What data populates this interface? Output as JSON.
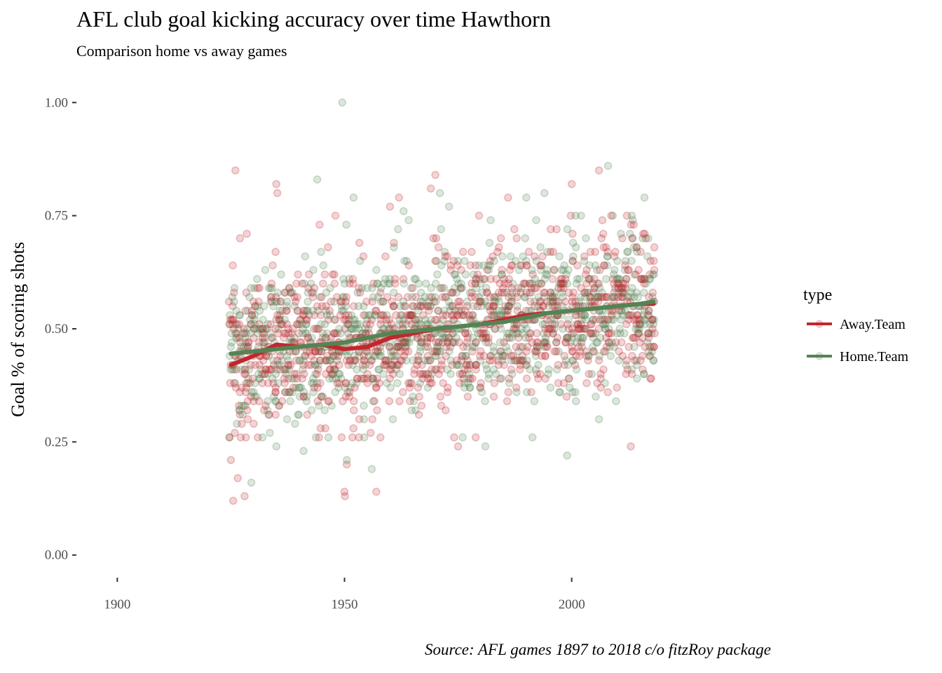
{
  "chart_data": {
    "type": "scatter",
    "title": "AFL club goal kicking accuracy over time Hawthorn",
    "subtitle": "Comparison home vs away games",
    "xlabel": "",
    "ylabel": "Goal % of scoring shots",
    "caption": "Source: AFL games 1897 to 2018 c/o fitzRoy package",
    "xlim": [
      1891,
      2042
    ],
    "ylim": [
      -0.05,
      1.05
    ],
    "x_ticks": [
      1900,
      1950,
      2000
    ],
    "x_tick_labels": [
      "1900",
      "1950",
      "2000"
    ],
    "y_ticks": [
      0.0,
      0.25,
      0.5,
      0.75,
      1.0
    ],
    "y_tick_labels": [
      "0.00",
      "0.25",
      "0.50",
      "0.75",
      "1.00"
    ],
    "grid": false,
    "legend": {
      "title": "type",
      "position": "right",
      "entries": [
        {
          "label": "Away.Team",
          "color": "#c0282e"
        },
        {
          "label": "Home.Team",
          "color": "#548453"
        }
      ]
    },
    "point_alpha": 0.2,
    "series": [
      {
        "name": "Away.Team",
        "color": "#c0282e",
        "x_range": [
          1925,
          2018
        ],
        "games_per_year": 11,
        "points": [
          [
            1925,
            0.21
          ],
          [
            1925.5,
            0.12
          ],
          [
            1926,
            0.85
          ],
          [
            1926.5,
            0.17
          ],
          [
            1927,
            0.7
          ],
          [
            1928,
            0.13
          ],
          [
            1928.5,
            0.71
          ],
          [
            1935,
            0.82
          ],
          [
            1935.2,
            0.8
          ],
          [
            1944.5,
            0.73
          ],
          [
            1948,
            0.75
          ],
          [
            1950,
            0.14
          ],
          [
            1950.1,
            0.13
          ],
          [
            1950.5,
            0.2
          ],
          [
            1957,
            0.14
          ],
          [
            1960,
            0.77
          ],
          [
            1962,
            0.79
          ],
          [
            1969,
            0.81
          ],
          [
            1970,
            0.84
          ],
          [
            1975,
            0.24
          ],
          [
            1986,
            0.79
          ],
          [
            2000,
            0.82
          ],
          [
            2006,
            0.85
          ],
          [
            2013,
            0.24
          ],
          [
            2017.5,
            0.39
          ]
        ],
        "trend": [
          [
            1925,
            0.42
          ],
          [
            1930,
            0.44
          ],
          [
            1935,
            0.465
          ],
          [
            1940,
            0.46
          ],
          [
            1945,
            0.465
          ],
          [
            1950,
            0.455
          ],
          [
            1955,
            0.46
          ],
          [
            1960,
            0.48
          ],
          [
            1965,
            0.49
          ],
          [
            1970,
            0.5
          ],
          [
            1975,
            0.505
          ],
          [
            1980,
            0.51
          ],
          [
            1985,
            0.52
          ],
          [
            1990,
            0.53
          ],
          [
            1995,
            0.535
          ],
          [
            2000,
            0.54
          ],
          [
            2005,
            0.545
          ],
          [
            2010,
            0.55
          ],
          [
            2015,
            0.555
          ],
          [
            2018,
            0.555
          ]
        ]
      },
      {
        "name": "Home.Team",
        "color": "#548453",
        "x_range": [
          1925,
          2018
        ],
        "games_per_year": 11,
        "points": [
          [
            1929.5,
            0.16
          ],
          [
            1935,
            0.24
          ],
          [
            1941,
            0.23
          ],
          [
            1944,
            0.83
          ],
          [
            1949.5,
            1.0
          ],
          [
            1950.5,
            0.21
          ],
          [
            1952,
            0.79
          ],
          [
            1956,
            0.19
          ],
          [
            1963,
            0.76
          ],
          [
            1971,
            0.8
          ],
          [
            1973,
            0.77
          ],
          [
            1976,
            0.26
          ],
          [
            1981,
            0.24
          ],
          [
            1990,
            0.79
          ],
          [
            1994,
            0.8
          ],
          [
            1999,
            0.22
          ],
          [
            2006,
            0.3
          ],
          [
            2008,
            0.86
          ],
          [
            2016,
            0.79
          ],
          [
            2018,
            0.43
          ]
        ],
        "trend": [
          [
            1925,
            0.445
          ],
          [
            1930,
            0.45
          ],
          [
            1935,
            0.455
          ],
          [
            1940,
            0.46
          ],
          [
            1945,
            0.465
          ],
          [
            1950,
            0.47
          ],
          [
            1955,
            0.48
          ],
          [
            1960,
            0.49
          ],
          [
            1965,
            0.495
          ],
          [
            1970,
            0.5
          ],
          [
            1975,
            0.505
          ],
          [
            1980,
            0.51
          ],
          [
            1985,
            0.515
          ],
          [
            1990,
            0.525
          ],
          [
            1995,
            0.535
          ],
          [
            2000,
            0.54
          ],
          [
            2005,
            0.545
          ],
          [
            2010,
            0.55
          ],
          [
            2015,
            0.555
          ],
          [
            2018,
            0.56
          ]
        ]
      }
    ]
  }
}
